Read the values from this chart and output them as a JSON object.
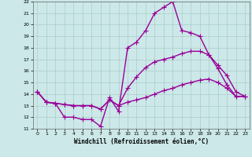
{
  "xlabel": "Windchill (Refroidissement éolien,°C)",
  "xlim": [
    -0.5,
    23.5
  ],
  "ylim": [
    11,
    22
  ],
  "yticks": [
    11,
    12,
    13,
    14,
    15,
    16,
    17,
    18,
    19,
    20,
    21,
    22
  ],
  "xticks": [
    0,
    1,
    2,
    3,
    4,
    5,
    6,
    7,
    8,
    9,
    10,
    11,
    12,
    13,
    14,
    15,
    16,
    17,
    18,
    19,
    20,
    21,
    22,
    23
  ],
  "bg_color": "#cce8e8",
  "grid_color": "#aacccc",
  "line_color": "#990099",
  "line_width": 1.0,
  "marker": "+",
  "marker_size": 4,
  "series": [
    [
      14.2,
      13.3,
      13.2,
      12.0,
      12.0,
      11.8,
      11.8,
      11.2,
      13.7,
      12.5,
      18.0,
      18.5,
      19.5,
      21.0,
      21.5,
      22.0,
      19.5,
      19.3,
      19.0,
      17.4,
      16.2,
      14.8,
      13.8,
      13.8
    ],
    [
      14.2,
      13.3,
      13.2,
      13.1,
      13.0,
      13.0,
      13.0,
      12.7,
      13.5,
      13.0,
      14.5,
      15.5,
      16.3,
      16.8,
      17.0,
      17.2,
      17.5,
      17.7,
      17.7,
      17.4,
      16.5,
      15.6,
      14.2,
      13.8
    ],
    [
      14.2,
      13.3,
      13.2,
      13.1,
      13.0,
      13.0,
      13.0,
      12.7,
      13.5,
      13.0,
      13.3,
      13.5,
      13.7,
      14.0,
      14.3,
      14.5,
      14.8,
      15.0,
      15.2,
      15.3,
      15.0,
      14.5,
      13.8,
      13.8
    ]
  ]
}
